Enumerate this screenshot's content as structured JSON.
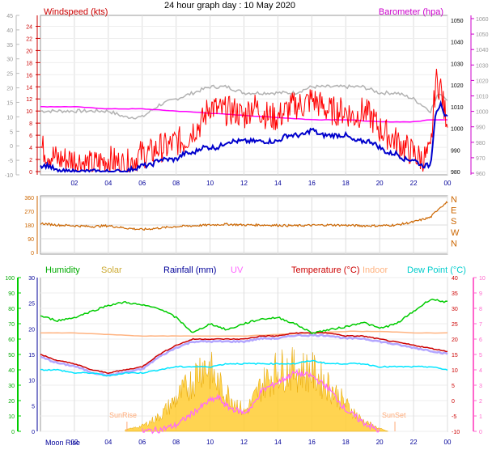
{
  "page_title": "24 hour graph day : 10 May 2020",
  "colors": {
    "wind_gust": "#ff0000",
    "wind_avg": "#0000cc",
    "wind_dir_avg": "#b3b3b3",
    "barometer": "#ff00ff",
    "wind_direction": "#cc6600",
    "humidity": "#00cc00",
    "solar": "#ffcc33",
    "rainfall": "#000099",
    "uv": "#ff66ff",
    "temperature": "#cc0000",
    "indoor": "#ffb380",
    "dew_point": "#00e5ff",
    "grid": "#dddddd",
    "frame": "#999999"
  },
  "chart_data": [
    {
      "type": "line",
      "name": "wind-baro",
      "legend": {
        "left": "Windspeed (kts)",
        "right": "Barometer (hpa)"
      },
      "x_ticks": [
        "02",
        "04",
        "06",
        "08",
        "10",
        "12",
        "14",
        "16",
        "18",
        "20",
        "22",
        "00"
      ],
      "x_range_hours": [
        0,
        24
      ],
      "ylim_left": [
        -10,
        45
      ],
      "ylim_wind_scale": [
        0,
        25
      ],
      "y_ticks_wind": [
        0,
        2,
        4,
        6,
        8,
        10,
        12,
        14,
        16,
        18,
        20,
        22,
        24
      ],
      "y_ticks_outer": [
        -10,
        -5,
        0,
        5,
        10,
        15,
        20,
        25,
        30,
        35,
        40,
        45
      ],
      "ylim_right": [
        980,
        1050
      ],
      "y_ticks_baro": [
        980,
        990,
        1000,
        1010,
        1020,
        1030,
        1040,
        1050
      ],
      "y_ticks_baro_right": [
        960,
        970,
        980,
        990,
        1000,
        1010,
        1020,
        1030,
        1040,
        1050,
        1060
      ],
      "series": [
        {
          "key": "gust",
          "x": [
            0,
            0.5,
            1,
            2,
            3,
            4,
            5,
            6,
            6.5,
            7,
            7.5,
            8,
            8.5,
            9,
            9.5,
            10,
            10.5,
            11,
            11.5,
            12,
            12.5,
            13,
            13.5,
            14,
            14.5,
            15,
            15.5,
            16,
            16.5,
            17,
            17.5,
            18,
            18.5,
            19,
            19.5,
            20,
            20.5,
            21,
            21.5,
            22,
            22.5,
            23,
            23.3,
            23.6,
            23.8,
            24
          ],
          "values": [
            4,
            3,
            2,
            2,
            1,
            2,
            1,
            3,
            3,
            4,
            4,
            5,
            5,
            7,
            8,
            11,
            10,
            10,
            10,
            9,
            11,
            10,
            9,
            9,
            10,
            11,
            11,
            12,
            11,
            10,
            10,
            10,
            9,
            10,
            9,
            7,
            6,
            5,
            4,
            3,
            2,
            3,
            15,
            14,
            10,
            9
          ]
        },
        {
          "key": "average",
          "x": [
            0,
            0.5,
            1,
            2,
            3,
            4,
            5,
            6,
            6.5,
            7,
            7.5,
            8,
            8.5,
            9,
            9.5,
            10,
            10.5,
            11,
            11.5,
            12,
            12.5,
            13,
            13.5,
            14,
            14.5,
            15,
            15.5,
            16,
            16.5,
            17,
            17.5,
            18,
            18.5,
            19,
            19.5,
            20,
            20.5,
            21,
            21.5,
            22,
            22.5,
            23,
            23.3,
            23.6,
            23.8,
            24
          ],
          "values": [
            1,
            1,
            0,
            0,
            0,
            0,
            0,
            1,
            1,
            2,
            2,
            2,
            3,
            3,
            4,
            4,
            4,
            5,
            5,
            5,
            5,
            5,
            5,
            5,
            6,
            6,
            6,
            7,
            6,
            6,
            6,
            6,
            5,
            5,
            5,
            4,
            3,
            3,
            2,
            2,
            1,
            1,
            10,
            11,
            9,
            9
          ]
        },
        {
          "key": "gray",
          "x": [
            0,
            1,
            2,
            3,
            4,
            5,
            6,
            7,
            8,
            9,
            10,
            11,
            12,
            13,
            14,
            15,
            16,
            17,
            18,
            19,
            20,
            21,
            22,
            23,
            23.5,
            24
          ],
          "values": [
            10,
            10,
            10,
            10,
            10,
            9,
            9,
            11,
            12,
            13,
            14,
            14,
            13,
            13,
            13,
            13,
            14,
            14,
            14,
            14,
            13,
            13,
            12,
            10,
            13,
            12
          ]
        },
        {
          "key": "barometer",
          "x": [
            0,
            2,
            4,
            6,
            8,
            10,
            12,
            14,
            16,
            18,
            20,
            22,
            23,
            24
          ],
          "values": [
            1010,
            1010,
            1009,
            1009,
            1008,
            1007,
            1006,
            1005,
            1004,
            1004,
            1003,
            1003,
            1004,
            1004
          ]
        }
      ]
    },
    {
      "type": "line",
      "name": "wind-direction",
      "y_ticks": [
        0,
        90,
        180,
        270,
        360
      ],
      "y_labels_right": [
        "N",
        "W",
        "S",
        "E",
        "N"
      ],
      "ylim": [
        0,
        360
      ],
      "x": [
        0,
        1,
        2,
        3,
        4,
        5,
        6,
        7,
        8,
        9,
        10,
        11,
        12,
        13,
        14,
        15,
        16,
        17,
        18,
        19,
        20,
        21,
        22,
        23,
        23.5,
        24
      ],
      "values": [
        190,
        180,
        175,
        170,
        175,
        160,
        150,
        160,
        170,
        175,
        180,
        185,
        180,
        180,
        178,
        175,
        178,
        180,
        178,
        175,
        175,
        180,
        200,
        230,
        290,
        330
      ]
    },
    {
      "type": "line",
      "name": "humidity-temp",
      "legend": [
        "Humidity",
        "Solar",
        "Rainfall (mm)",
        "UV",
        "Temperature (°C)",
        "Indoor",
        "Dew Point (°C)"
      ],
      "annotations": [
        "SunRise",
        "SunSet",
        "Moon Rise"
      ],
      "y_ticks_humidity": [
        0,
        10,
        20,
        30,
        40,
        50,
        60,
        70,
        80,
        90,
        100
      ],
      "y_ticks_left2": [
        0,
        5,
        10,
        15,
        20,
        25,
        30
      ],
      "y_ticks_temp": [
        -10,
        -5,
        0,
        5,
        10,
        15,
        20,
        25,
        30,
        35,
        40
      ],
      "y_ticks_uv": [
        0,
        1,
        2,
        3,
        4,
        5,
        6,
        7,
        8,
        9,
        10
      ],
      "ylim_temp": [
        -10,
        40
      ],
      "series": [
        {
          "key": "humidity",
          "x": [
            0,
            1,
            2,
            3,
            4,
            5,
            6,
            7,
            8,
            9,
            10,
            11,
            12,
            13,
            14,
            15,
            16,
            17,
            18,
            19,
            20,
            21,
            22,
            23,
            23.5,
            24
          ],
          "values": [
            75,
            72,
            74,
            78,
            82,
            84,
            82,
            80,
            74,
            64,
            70,
            66,
            70,
            73,
            74,
            70,
            64,
            66,
            68,
            71,
            67,
            70,
            78,
            86,
            85,
            84
          ]
        },
        {
          "key": "temperature",
          "x": [
            0,
            1,
            2,
            3,
            4,
            5,
            6,
            7,
            8,
            9,
            10,
            11,
            12,
            13,
            14,
            15,
            16,
            17,
            18,
            19,
            20,
            21,
            22,
            23,
            24
          ],
          "values": [
            15,
            13,
            12,
            10,
            9,
            10,
            11,
            15,
            18,
            20,
            20,
            20,
            20,
            21,
            21,
            22,
            22,
            22,
            21,
            21,
            20,
            19,
            18,
            17,
            16
          ]
        },
        {
          "key": "dew_point",
          "x": [
            0,
            1,
            2,
            3,
            4,
            5,
            6,
            7,
            8,
            9,
            10,
            11,
            12,
            13,
            14,
            15,
            16,
            17,
            18,
            19,
            20,
            21,
            22,
            23,
            24
          ],
          "values": [
            10,
            10,
            9,
            9,
            8,
            9,
            9,
            10,
            11,
            11,
            11,
            12,
            12,
            12,
            12,
            12,
            13,
            12,
            12,
            12,
            11,
            11,
            11,
            11,
            10
          ]
        },
        {
          "key": "indoor",
          "x": [
            0,
            2,
            4,
            6,
            8,
            10,
            12,
            14,
            16,
            18,
            20,
            22,
            24
          ],
          "values": [
            22,
            22,
            21.5,
            21,
            21,
            21,
            21,
            21.5,
            22,
            22.5,
            22.5,
            22,
            22
          ]
        },
        {
          "key": "solar",
          "x": [
            5,
            6,
            7,
            8,
            9,
            9.5,
            10,
            10.5,
            11,
            11.5,
            12,
            12.5,
            13,
            14,
            15,
            16,
            17,
            18,
            19,
            20,
            20.5
          ],
          "values": [
            0.1,
            0.4,
            1.1,
            2.4,
            3.8,
            5,
            4.6,
            3.4,
            2.8,
            2.2,
            1.4,
            2.2,
            3.4,
            4.6,
            4.6,
            4.4,
            3.4,
            2.0,
            0.8,
            0.2,
            0
          ]
        },
        {
          "key": "uv",
          "x": [
            6,
            7,
            8,
            9,
            10,
            10.5,
            11,
            11.5,
            12,
            12.5,
            13,
            14,
            15,
            16,
            17,
            18,
            19,
            20
          ],
          "values": [
            0,
            0.1,
            0.4,
            1.2,
            2,
            2.2,
            1.6,
            1.4,
            1.2,
            1.6,
            2.6,
            3.2,
            3.8,
            3.6,
            2.8,
            1.4,
            0.6,
            0
          ]
        }
      ]
    }
  ]
}
